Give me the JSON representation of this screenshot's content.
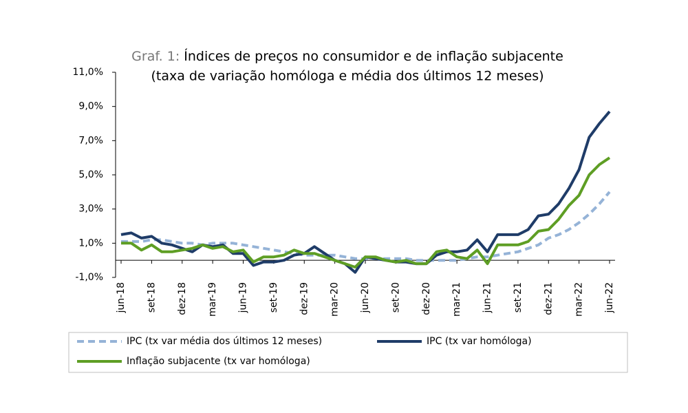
{
  "chart_data": {
    "type": "line",
    "title_prefix": "Graf. 1:",
    "title": "Índices de preços no consumidor e de inflação subjacente",
    "subtitle": "(taxa de variação homóloga e média dos últimos 12 meses)",
    "categories": [
      "jun-18",
      null,
      null,
      "set-18",
      null,
      null,
      "dez-18",
      null,
      null,
      "mar-19",
      null,
      null,
      "jun-19",
      null,
      null,
      "set-19",
      null,
      null,
      "dez-19",
      null,
      null,
      "mar-20",
      null,
      null,
      "jun-20",
      null,
      null,
      "set-20",
      null,
      null,
      "dez-20",
      null,
      null,
      "mar-21",
      null,
      null,
      "jun-21",
      null,
      null,
      "set-21",
      null,
      null,
      "dez-21",
      null,
      null,
      "mar-22",
      null,
      null,
      "jun-22"
    ],
    "series": [
      {
        "name": "IPC (tx var média dos últimos 12 meses)",
        "color": "#95b3d7",
        "style": "dashed",
        "values": [
          1.1,
          1.1,
          1.1,
          1.2,
          1.2,
          1.1,
          1.0,
          1.0,
          0.9,
          1.0,
          1.0,
          1.0,
          0.9,
          0.8,
          0.7,
          0.6,
          0.5,
          0.4,
          0.3,
          0.3,
          0.3,
          0.3,
          0.2,
          0.1,
          0.1,
          0.1,
          0.1,
          0.1,
          0.1,
          0.0,
          0.0,
          0.0,
          0.0,
          0.0,
          0.1,
          0.2,
          0.2,
          0.3,
          0.4,
          0.5,
          0.7,
          0.9,
          1.3,
          1.5,
          1.8,
          2.2,
          2.7,
          3.3,
          4.0
        ]
      },
      {
        "name": "IPC (tx var homóloga)",
        "color": "#1f3c68",
        "style": "solid",
        "values": [
          1.5,
          1.6,
          1.3,
          1.4,
          1.0,
          0.9,
          0.7,
          0.5,
          0.9,
          0.8,
          0.9,
          0.4,
          0.4,
          -0.3,
          -0.1,
          -0.1,
          0.0,
          0.3,
          0.4,
          0.8,
          0.4,
          0.0,
          -0.2,
          -0.7,
          0.2,
          0.1,
          0.0,
          -0.1,
          -0.1,
          -0.2,
          -0.2,
          0.3,
          0.5,
          0.5,
          0.6,
          1.2,
          0.5,
          1.5,
          1.5,
          1.5,
          1.8,
          2.6,
          2.7,
          3.3,
          4.2,
          5.3,
          7.2,
          8.0,
          8.7
        ]
      },
      {
        "name": "Inflação subjacente (tx var homóloga)",
        "color": "#5e9e24",
        "style": "solid",
        "values": [
          1.0,
          1.0,
          0.6,
          0.9,
          0.5,
          0.5,
          0.6,
          0.7,
          0.9,
          0.7,
          0.8,
          0.5,
          0.6,
          -0.1,
          0.2,
          0.2,
          0.3,
          0.6,
          0.4,
          0.4,
          0.2,
          0.0,
          -0.2,
          -0.4,
          0.2,
          0.2,
          0.0,
          -0.1,
          0.0,
          -0.2,
          -0.2,
          0.5,
          0.6,
          0.2,
          0.1,
          0.6,
          -0.2,
          0.9,
          0.9,
          0.9,
          1.1,
          1.7,
          1.8,
          2.4,
          3.2,
          3.8,
          5.0,
          5.6,
          6.0
        ]
      }
    ],
    "ylim": [
      -1,
      11
    ],
    "yticks": [
      {
        "value": -1,
        "label": "-1,0%"
      },
      {
        "value": 1,
        "label": "1,0%"
      },
      {
        "value": 3,
        "label": "3,0%"
      },
      {
        "value": 5,
        "label": "5,0%"
      },
      {
        "value": 7,
        "label": "7,0%"
      },
      {
        "value": 9,
        "label": "9,0%"
      },
      {
        "value": 11,
        "label": "11,0%"
      }
    ],
    "grid": false
  }
}
